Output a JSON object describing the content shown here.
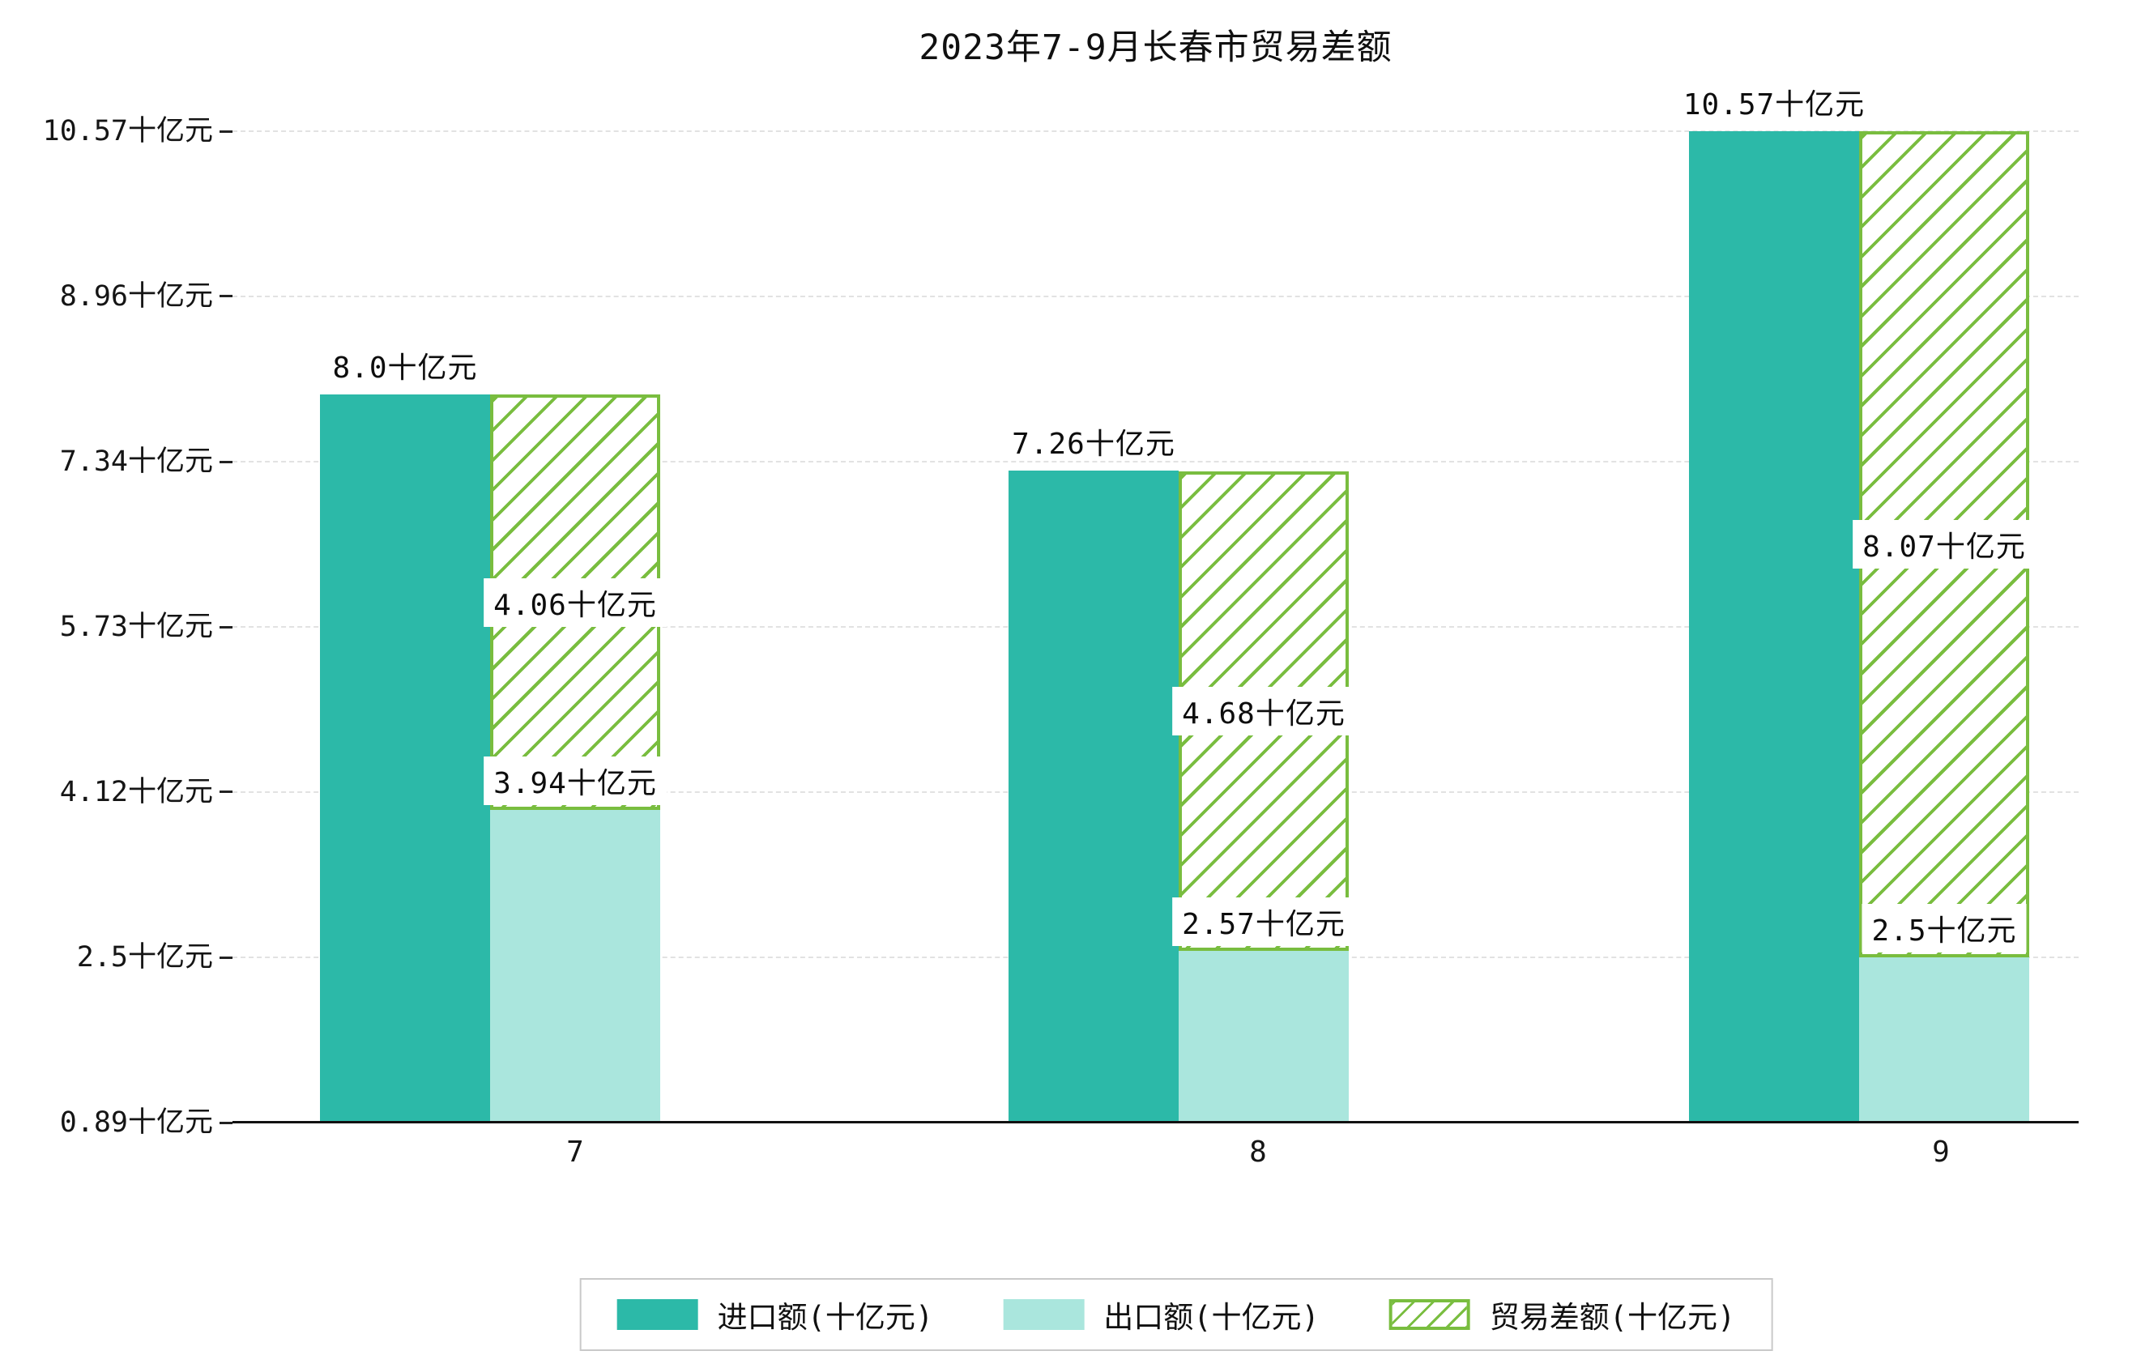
{
  "chart_data": {
    "type": "bar",
    "title": "2023年7-9月长春市贸易差额",
    "categories": [
      "7",
      "8",
      "9"
    ],
    "series": [
      {
        "name": "进口额(十亿元)",
        "values": [
          8.0,
          7.26,
          10.57
        ],
        "data_labels": [
          "8.0十亿元",
          "7.26十亿元",
          "10.57十亿元"
        ],
        "color": "#2cb9a8",
        "pattern": "solid"
      },
      {
        "name": "出口额(十亿元)",
        "values": [
          3.94,
          2.57,
          2.5
        ],
        "data_labels": [
          "3.94十亿元",
          "2.57十亿元",
          "2.5十亿元"
        ],
        "color": "#aae6dd",
        "pattern": "solid"
      },
      {
        "name": "贸易差额(十亿元)",
        "values": [
          4.06,
          4.68,
          8.07
        ],
        "data_labels": [
          "4.06十亿元",
          "4.68十亿元",
          "8.07十亿元"
        ],
        "color": "#79bd3f",
        "pattern": "hatch",
        "stacked_on": "出口额(十亿元)"
      }
    ],
    "y_axis": {
      "min": 0.89,
      "max": 10.57,
      "tick_values": [
        0.89,
        2.5,
        4.12,
        5.73,
        7.34,
        8.96,
        10.57
      ],
      "tick_labels": [
        "0.89十亿元",
        "2.5十亿元",
        "4.12十亿元",
        "5.73十亿元",
        "7.34十亿元",
        "8.96十亿元",
        "10.57十亿元"
      ]
    },
    "x_axis": {
      "tick_labels": [
        "7",
        "8",
        "9"
      ]
    },
    "grid": "dashed-horizontal",
    "legend_position": "bottom",
    "colors": {
      "import": "#2cb9a8",
      "export": "#aae6dd",
      "balance": "#79bd3f",
      "axis": "#111111",
      "grid": "#e2e2e2",
      "text": "#111111",
      "legend_border": "#c9c9c9",
      "background": "#ffffff"
    }
  }
}
